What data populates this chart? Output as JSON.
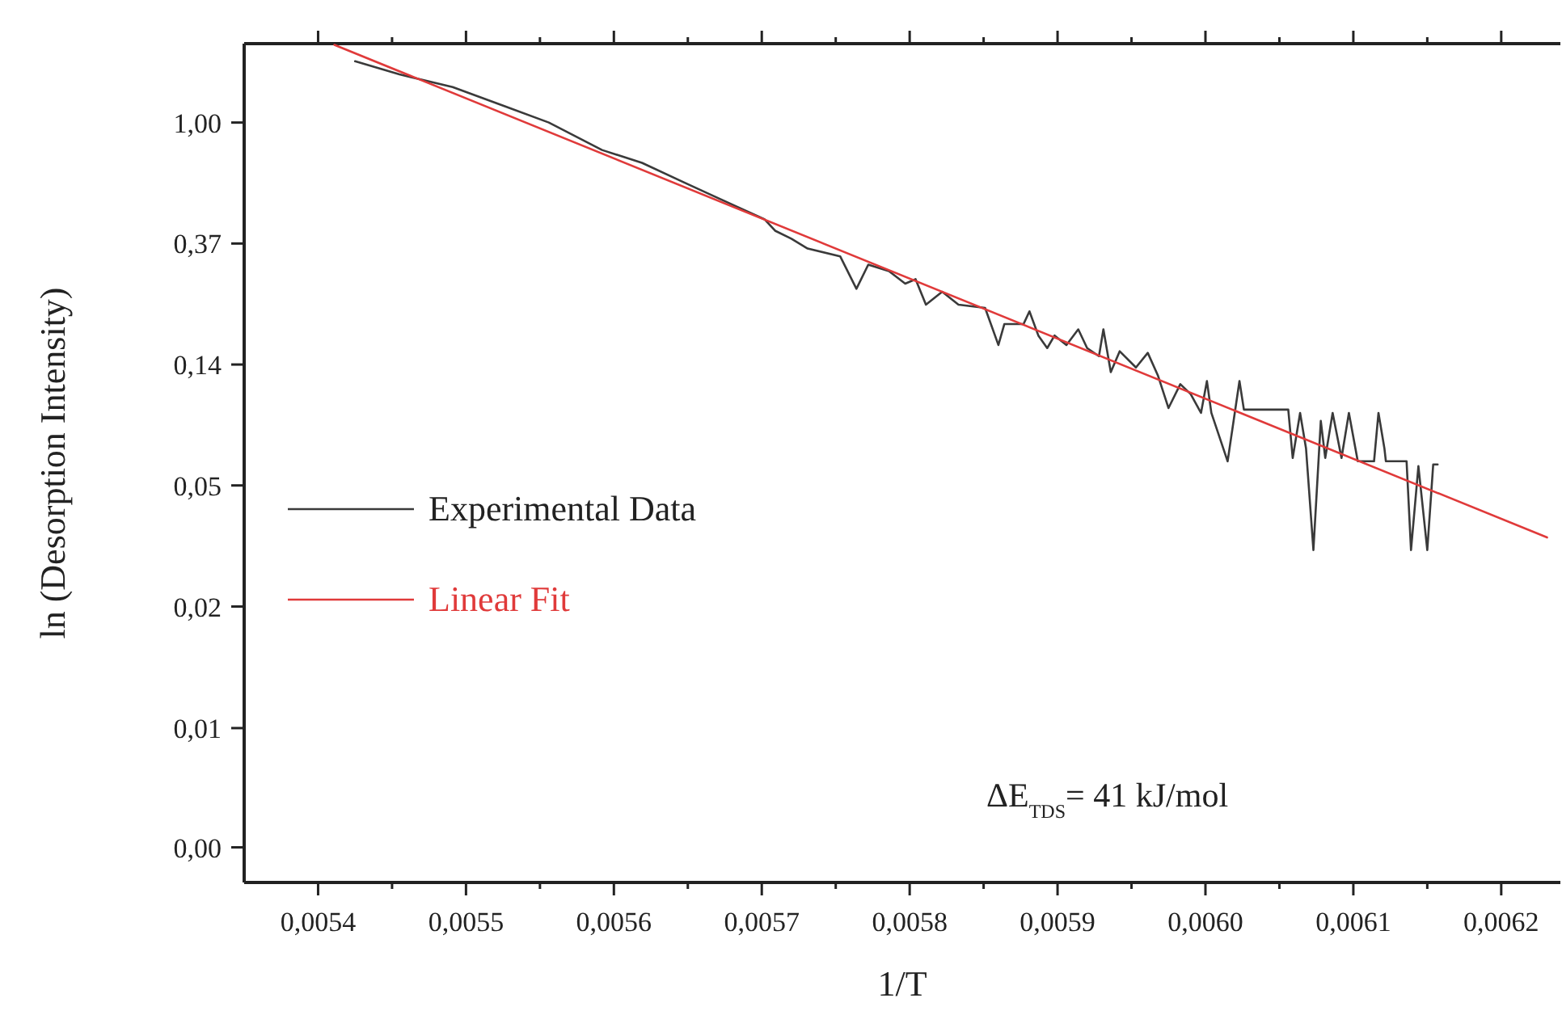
{
  "chart_data": {
    "type": "line",
    "xlabel": "1/T",
    "ylabel": "ln (Desorption Intensity)",
    "log": "y",
    "legend": "left",
    "line_style": "solid",
    "marker": "none",
    "xlim": [
      0.00535,
      0.00624
    ],
    "ylim": [
      0.00187,
      1.92
    ],
    "xticks": [
      {
        "value": 0.0054,
        "label": "0,0054"
      },
      {
        "value": 0.00545,
        "label": null
      },
      {
        "value": 0.0055,
        "label": "0,0055"
      },
      {
        "value": 0.00555,
        "label": null
      },
      {
        "value": 0.0056,
        "label": "0,0056"
      },
      {
        "value": 0.00565,
        "label": null
      },
      {
        "value": 0.0057,
        "label": "0,0057"
      },
      {
        "value": 0.00575,
        "label": null
      },
      {
        "value": 0.0058,
        "label": "0,0058"
      },
      {
        "value": 0.00585,
        "label": null
      },
      {
        "value": 0.0059,
        "label": "0,0059"
      },
      {
        "value": 0.00595,
        "label": null
      },
      {
        "value": 0.006,
        "label": "0,0060"
      },
      {
        "value": 0.00605,
        "label": null
      },
      {
        "value": 0.0061,
        "label": "0,0061"
      },
      {
        "value": 0.00615,
        "label": null
      },
      {
        "value": 0.0062,
        "label": "0,0062"
      }
    ],
    "yticks": [
      {
        "value": 1,
        "label": "1,00"
      },
      {
        "value": 0.3679,
        "label": "0,37"
      },
      {
        "value": 0.1353,
        "label": "0,14"
      },
      {
        "value": 0.0498,
        "label": "0,05"
      },
      {
        "value": 0.0183,
        "label": "0,02"
      },
      {
        "value": 0.0067,
        "label": "0,01"
      },
      {
        "value": 0.0025,
        "label": "0,00"
      }
    ],
    "annotations": [
      "ΔE$_{TDS}$= 41 kJ/mol"
    ],
    "series": [
      {
        "name": "Experimental Data",
        "color": "#3a3a3a",
        "x": [
          0.005425,
          0.005455,
          0.005491,
          0.005527,
          0.005556,
          0.005592,
          0.005619,
          0.005647,
          0.005666,
          0.005702,
          0.005709,
          0.00572,
          0.005731,
          0.005753,
          0.005764,
          0.005772,
          0.005786,
          0.005797,
          0.005804,
          0.005811,
          0.005822,
          0.005833,
          0.005851,
          0.00586,
          0.005864,
          0.005877,
          0.005881,
          0.005887,
          0.005893,
          0.005898,
          0.005906,
          0.005914,
          0.00592,
          0.005928,
          0.005931,
          0.005936,
          0.005942,
          0.005953,
          0.005961,
          0.005968,
          0.005975,
          0.005983,
          0.00599,
          0.005997,
          0.006001,
          0.006004,
          0.006015,
          0.006023,
          0.006026,
          0.006056,
          0.006059,
          0.006064,
          0.006068,
          0.006073,
          0.006078,
          0.006081,
          0.006086,
          0.006092,
          0.006097,
          0.006103,
          0.006114,
          0.006117,
          0.006121,
          0.006122,
          0.006136,
          0.006139,
          0.006144,
          0.00615,
          0.006154,
          0.006157
        ],
        "values": [
          1.66,
          1.49,
          1.34,
          1.14,
          1.0,
          0.797,
          0.717,
          0.611,
          0.549,
          0.449,
          0.409,
          0.383,
          0.353,
          0.331,
          0.253,
          0.309,
          0.293,
          0.264,
          0.274,
          0.222,
          0.247,
          0.222,
          0.216,
          0.159,
          0.189,
          0.189,
          0.21,
          0.172,
          0.155,
          0.172,
          0.159,
          0.181,
          0.155,
          0.145,
          0.181,
          0.127,
          0.151,
          0.132,
          0.149,
          0.123,
          0.0944,
          0.115,
          0.106,
          0.0907,
          0.118,
          0.0907,
          0.0608,
          0.118,
          0.0932,
          0.0932,
          0.0625,
          0.0907,
          0.0677,
          0.0292,
          0.0849,
          0.0625,
          0.0907,
          0.0625,
          0.0907,
          0.0608,
          0.0608,
          0.0907,
          0.0677,
          0.0608,
          0.0608,
          0.0292,
          0.0584,
          0.0292,
          0.0592,
          0.0592
        ]
      },
      {
        "name": "Linear Fit",
        "color": "#e03a3a",
        "x": [
          0.005411,
          0.006231
        ],
        "values": [
          1.9,
          0.0324
        ]
      }
    ]
  }
}
